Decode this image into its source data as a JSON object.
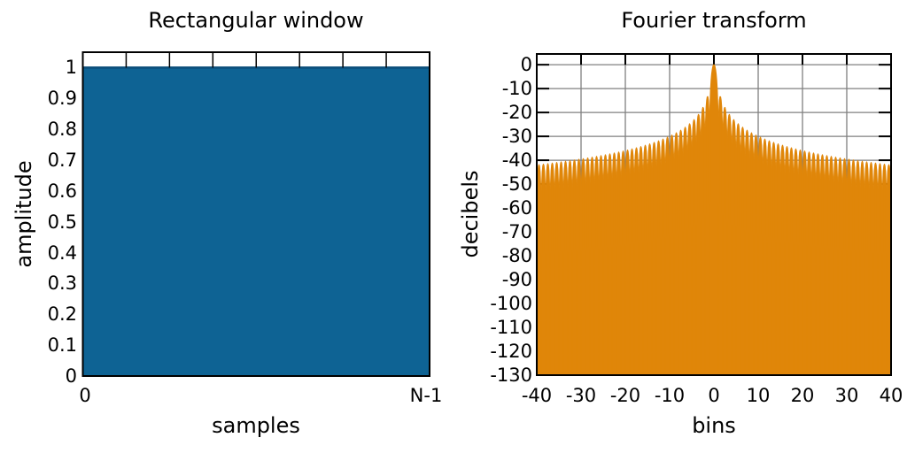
{
  "figure": {
    "background": "#ffffff",
    "frame_color": "#000000",
    "text_color": "#000000"
  },
  "chart_data": [
    {
      "type": "area",
      "title": "Rectangular window",
      "xlabel": "samples",
      "ylabel": "amplitude",
      "xticklabels": [
        "0",
        "N-1"
      ],
      "yticklabels": [
        "0",
        "0.1",
        "0.2",
        "0.3",
        "0.4",
        "0.5",
        "0.6",
        "0.7",
        "0.8",
        "0.9",
        "1"
      ],
      "ylim": [
        0,
        1.05
      ],
      "grid": false,
      "top_minor_tick_divisions": 8,
      "fill_color": "#0e6394",
      "edge_color": "#0a4d7a",
      "series": [
        {
          "name": "rectangular window",
          "description": "w[n] = 1 for all samples 0 to N-1 (constant amplitude 1)",
          "x": [
            "0",
            "N-1"
          ],
          "y": [
            1,
            1
          ]
        }
      ]
    },
    {
      "type": "area",
      "title": "Fourier transform",
      "xlabel": "bins",
      "ylabel": "decibels",
      "xlim": [
        -40,
        40
      ],
      "ylim": [
        -130,
        4.5
      ],
      "xticks": [
        -40,
        -30,
        -20,
        -10,
        0,
        10,
        20,
        30,
        40
      ],
      "yticks": [
        0,
        -10,
        -20,
        -30,
        -40,
        -50,
        -60,
        -70,
        -80,
        -90,
        -100,
        -110,
        -120,
        -130
      ],
      "grid": true,
      "grid_color": "#808080",
      "fill_color": "#e08609",
      "curve": {
        "kind": "sinc_db",
        "formula": "dB(k) = 20*log10(|sin(pi*k)/(pi*k)|)",
        "peak_bin": 0,
        "peak_db": 0,
        "first_sidelobe_db": -13.3,
        "zeros": "every nonzero integer bin (lobes dip toward -infinity, clipped at floor)",
        "envelope_db": {
          "at_1.5": -13.3,
          "at_10.5": -30.4,
          "at_20.5": -36.2,
          "at_40": -42
        },
        "floor_db": -130,
        "samples_per_bin": 8
      }
    }
  ]
}
